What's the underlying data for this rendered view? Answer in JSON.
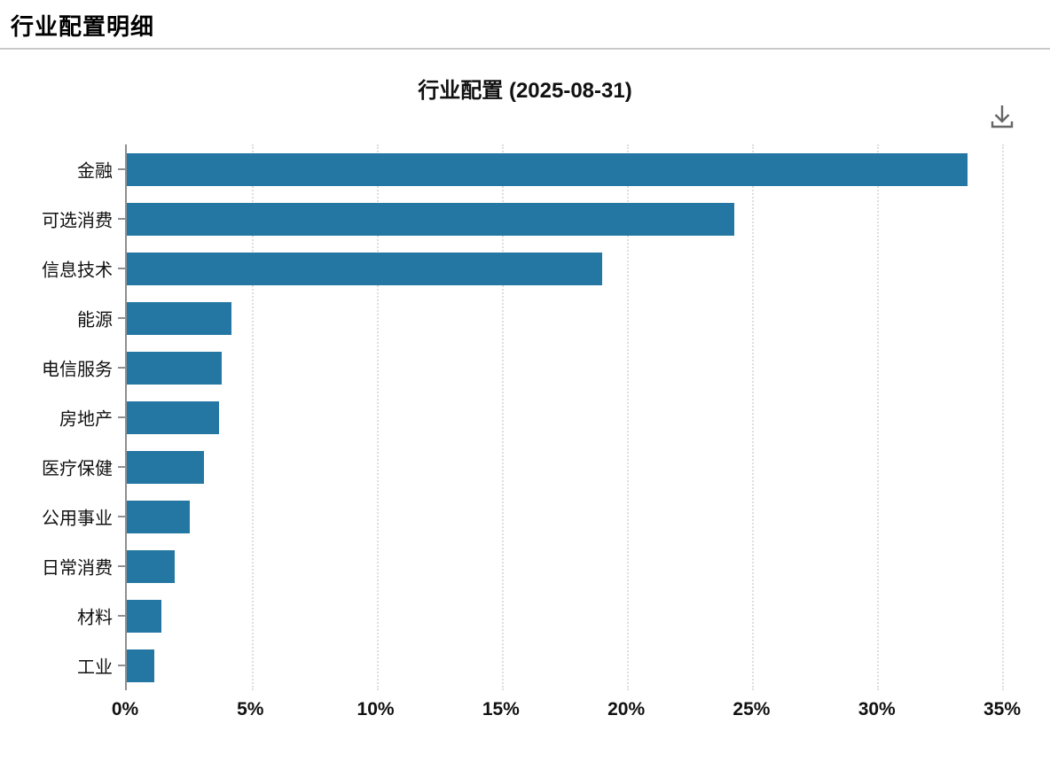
{
  "page": {
    "title": "行业配置明细"
  },
  "chart": {
    "title": "行业配置 (2025-08-31)",
    "download_icon": "download-icon"
  },
  "colors": {
    "bar": "#2577a3",
    "axis": "#8f8f8f",
    "gridline": "#dedede",
    "divider": "#c9c9c9",
    "icon": "#666666"
  },
  "chart_data": {
    "type": "bar",
    "orientation": "horizontal",
    "title": "行业配置 (2025-08-31)",
    "categories": [
      "金融",
      "可选消费",
      "信息技术",
      "能源",
      "电信服务",
      "房地产",
      "医疗保健",
      "公用事业",
      "日常消费",
      "材料",
      "工业"
    ],
    "values": [
      33.6,
      24.3,
      19.0,
      4.2,
      3.8,
      3.7,
      3.1,
      2.5,
      1.9,
      1.4,
      1.1
    ],
    "unit": "%",
    "xlabel": "",
    "ylabel": "",
    "xlim": [
      0,
      35
    ],
    "x_tick_values": [
      0,
      5,
      10,
      15,
      20,
      25,
      30,
      35
    ],
    "x_tick_labels": [
      "0%",
      "5%",
      "10%",
      "15%",
      "20%",
      "25%",
      "30%",
      "35%"
    ],
    "grid": "vertical-dotted",
    "legend": "none"
  }
}
